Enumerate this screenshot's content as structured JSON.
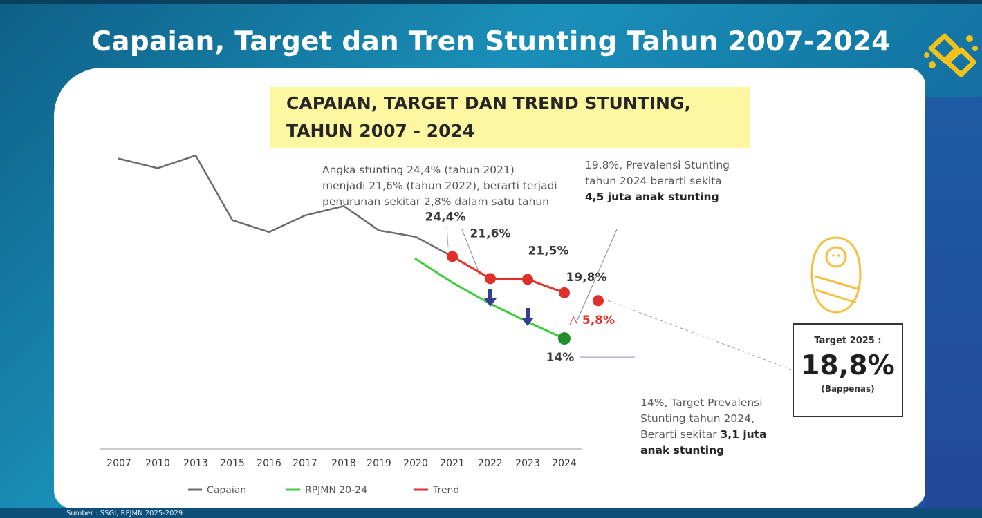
{
  "slide": {
    "title": "Capaian, Target dan Tren Stunting Tahun 2007-2024",
    "source": "Sumber : SSGI, RPJMN 2025-2029"
  },
  "colors": {
    "capaian": "#6a6a6a",
    "rpjmn": "#3ccc3c",
    "trend": "#e0302a",
    "highlight": "#fcf7a0",
    "arrow": "#333f93"
  },
  "chart_data": {
    "type": "line",
    "title_line1": "CAPAIAN, TARGET DAN TREND STUNTING,",
    "title_line2": "TAHUN 2007 - 2024",
    "categories": [
      "2007",
      "2010",
      "2013",
      "2015",
      "2016",
      "2017",
      "2018",
      "2019",
      "2020",
      "2021",
      "2022",
      "2023",
      "2024"
    ],
    "ylim": [
      0,
      45
    ],
    "grid": false,
    "legend_position": "bottom",
    "series": [
      {
        "name": "Capaian",
        "values": [
          36.8,
          35.6,
          37.2,
          29.0,
          27.5,
          29.6,
          30.8,
          27.7,
          26.9,
          24.4,
          null,
          null,
          null
        ]
      },
      {
        "name": "RPJMN 20-24",
        "values": [
          null,
          null,
          null,
          null,
          null,
          null,
          null,
          null,
          24.1,
          21.1,
          18.4,
          16.1,
          14.0
        ]
      },
      {
        "name": "Trend",
        "values": [
          null,
          null,
          null,
          null,
          null,
          null,
          null,
          null,
          null,
          24.4,
          21.6,
          21.5,
          19.8
        ]
      }
    ],
    "projection_point": {
      "label": "2025",
      "value": 18.8
    },
    "point_labels": [
      {
        "text": "24,4%",
        "series": 2,
        "index": 9
      },
      {
        "text": "21,6%",
        "series": 2,
        "index": 10
      },
      {
        "text": "21,5%",
        "series": 2,
        "index": 11
      },
      {
        "text": "19,8%",
        "series": 2,
        "index": 12
      },
      {
        "text": "14%",
        "series": 1,
        "index": 12
      }
    ],
    "delta_label": "△ 5,8%",
    "annotations": {
      "a1": "Angka stunting 24,4% (tahun 2021) menjadi 21,6% (tahun 2022), berarti terjadi penurunan sekitar 2,8% dalam satu tahun",
      "a2_pre": "19.8%, Prevalensi Stunting tahun 2024 berarti sekita ",
      "a2_bold": "4,5 juta anak stunting",
      "a3_pre": "14%, Target Prevalensi Stunting tahun 2024, Berarti sekitar ",
      "a3_bold": "3,1 juta anak stunting"
    },
    "target": {
      "label": "Target 2025 :",
      "value": "18,8%",
      "source": "(Bappenas)"
    }
  }
}
